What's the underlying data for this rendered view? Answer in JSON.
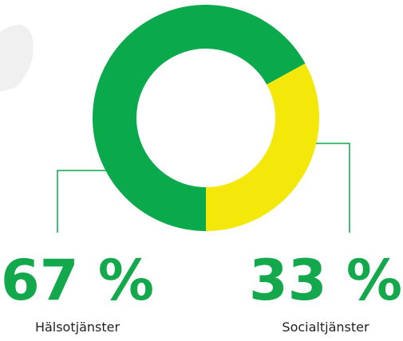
{
  "chart_data": {
    "type": "donut",
    "categories": [
      "Hälsotjänster",
      "Socialtjänster"
    ],
    "values": [
      67,
      33
    ],
    "value_labels": [
      "67 %",
      "33 %"
    ],
    "colors": [
      "#0aa94b",
      "#f4e80b"
    ],
    "label_color": "#12a84b"
  }
}
